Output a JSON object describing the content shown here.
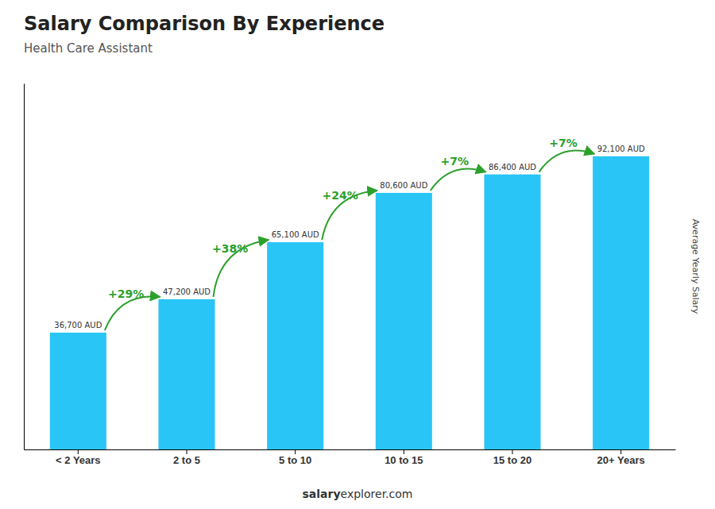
{
  "chart_data": {
    "type": "bar",
    "title": "Salary Comparison By Experience",
    "subtitle": "Health Care Assistant",
    "ylabel": "Average Yearly Salary",
    "categories": [
      "< 2 Years",
      "2 to 5",
      "5 to 10",
      "10 to 15",
      "15 to 20",
      "20+ Years"
    ],
    "values": [
      36700,
      47200,
      65100,
      80600,
      86400,
      92100
    ],
    "value_labels": [
      "36,700 AUD",
      "47,200 AUD",
      "65,100 AUD",
      "80,600 AUD",
      "86,400 AUD",
      "92,100 AUD"
    ],
    "data_labels": true,
    "annotations": [
      "+29%",
      "+38%",
      "+24%",
      "+7%",
      "+7%"
    ],
    "footer": [
      "salary",
      "explorer.com"
    ],
    "color": "#29c5f6",
    "ylim": [
      0,
      115000
    ],
    "tick_labels": "x",
    "grid": false
  }
}
